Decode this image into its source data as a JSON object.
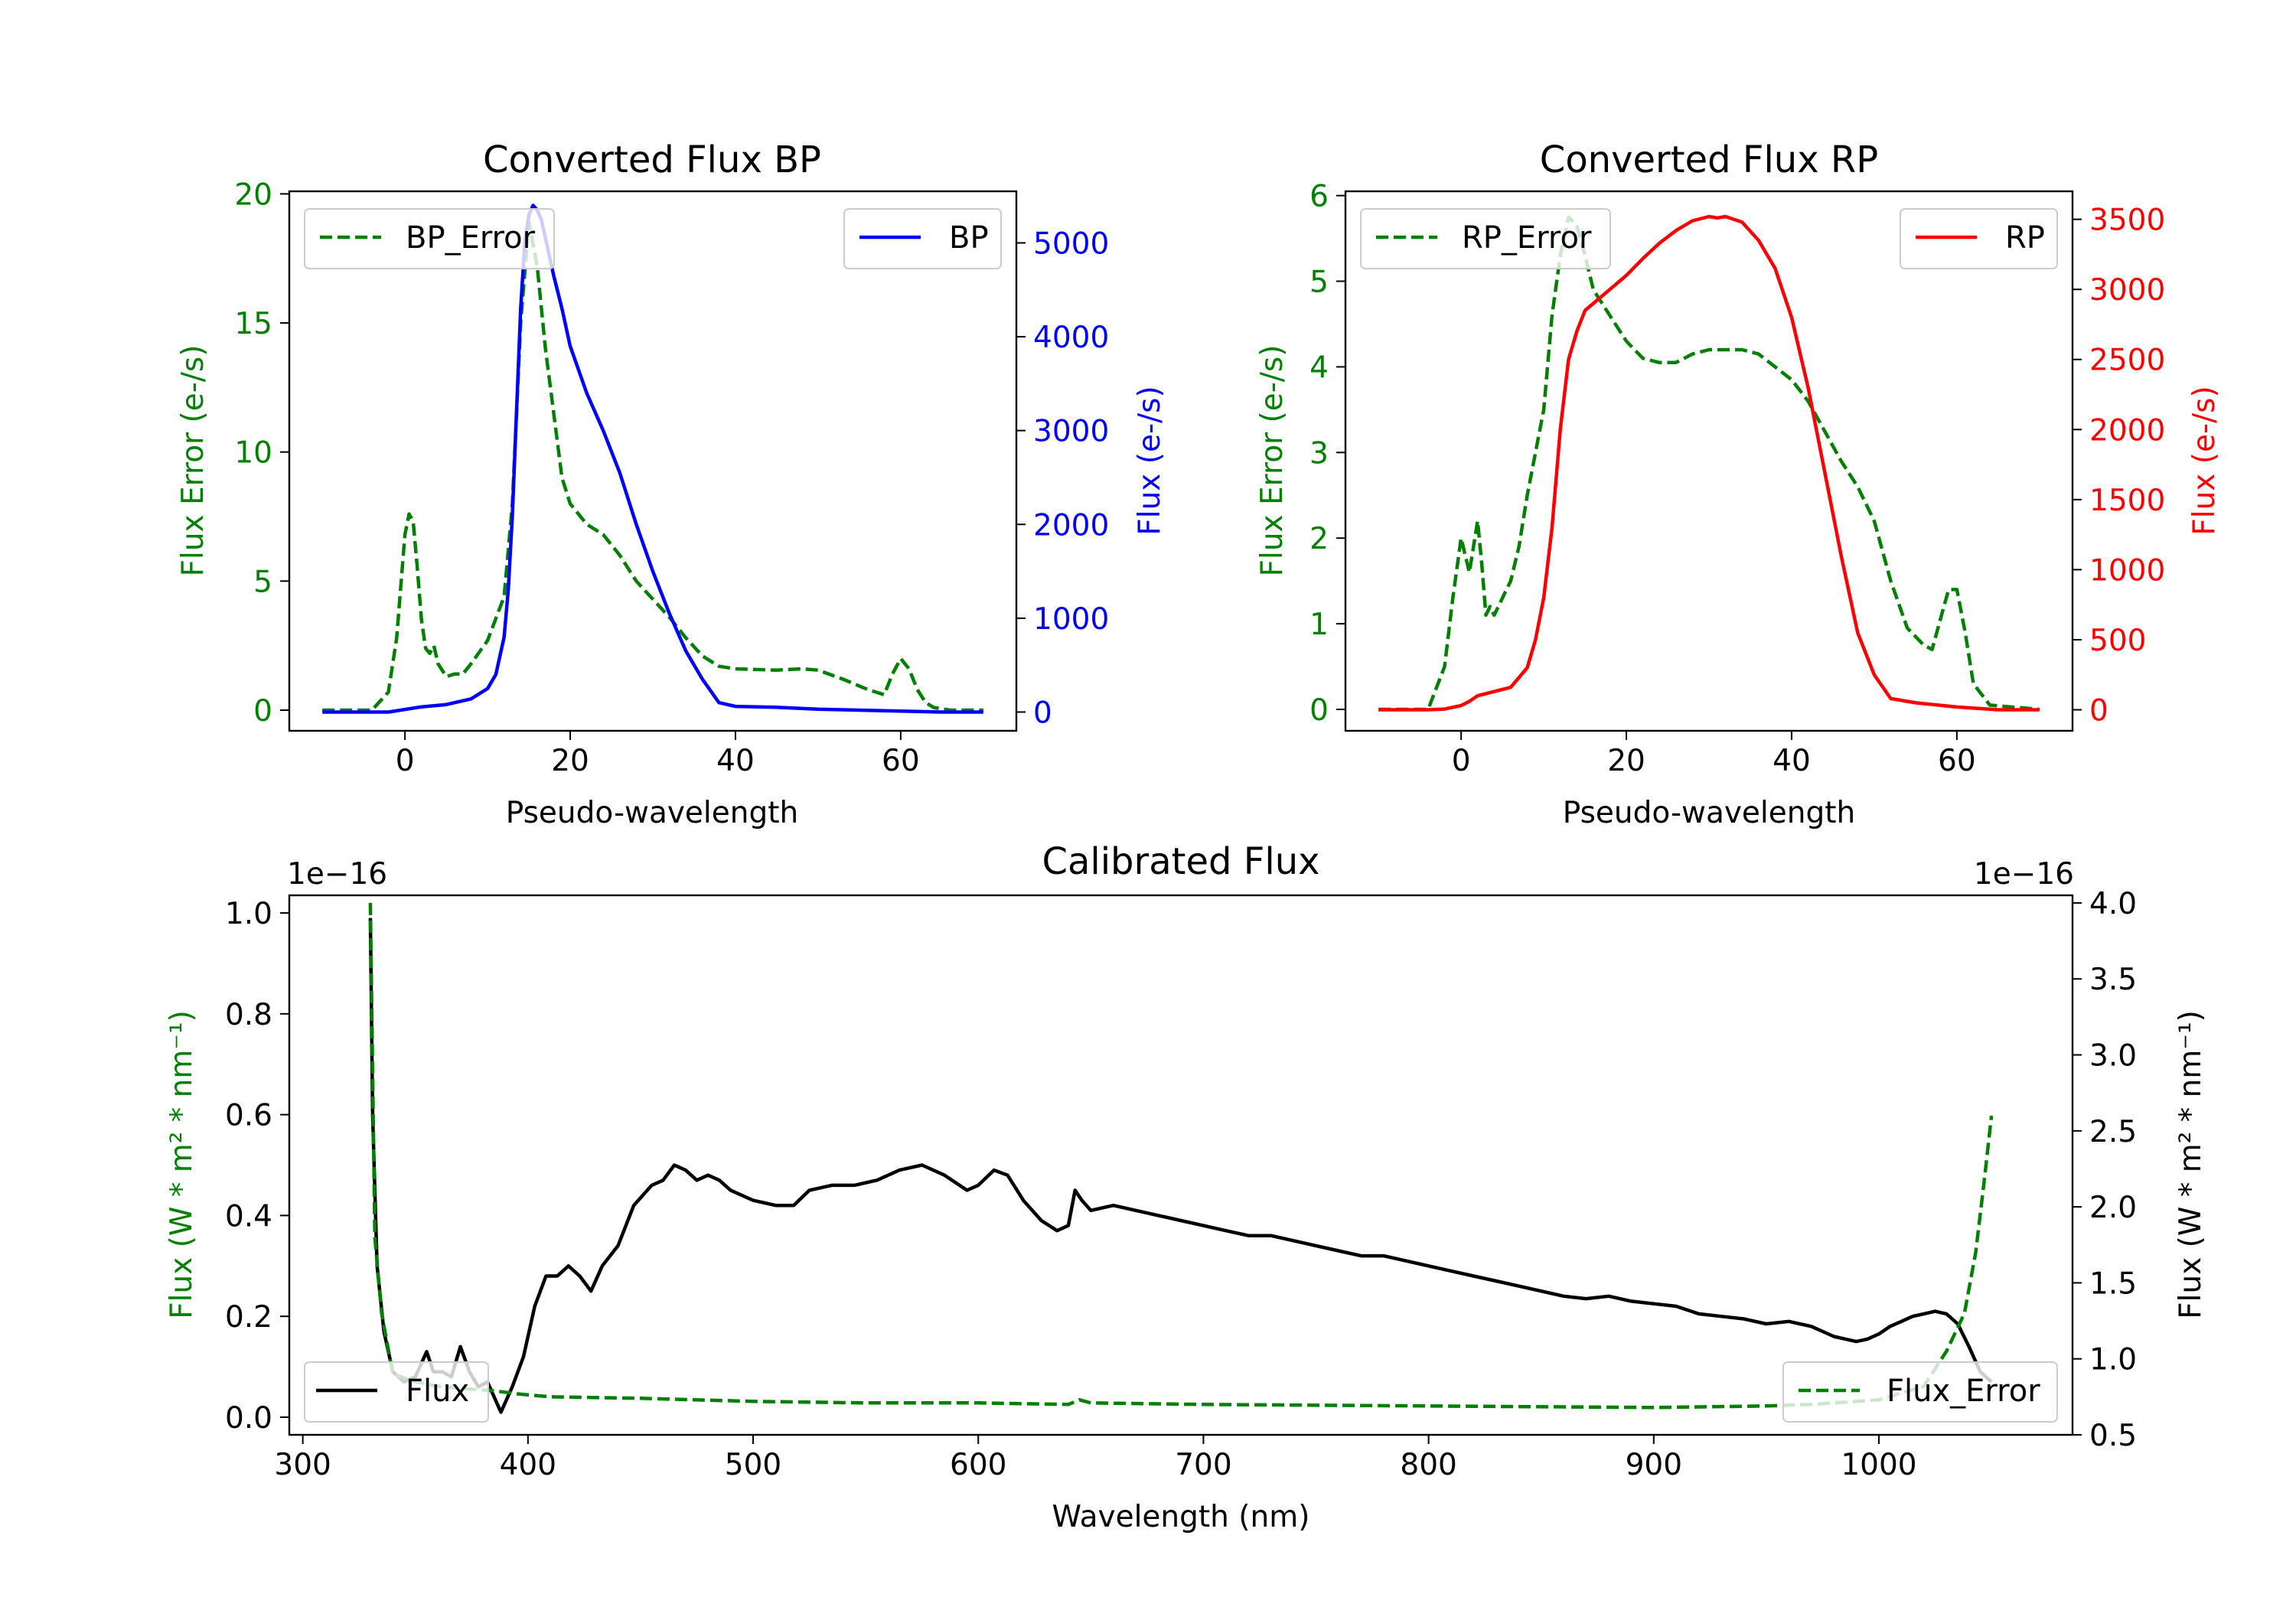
{
  "colors": {
    "green": "#008000",
    "blue": "#0000ff",
    "red": "#ff0000",
    "black": "#000000"
  },
  "chart_data": [
    {
      "id": "bp",
      "type": "line",
      "title": "Converted Flux BP",
      "xlabel": "Pseudo-wavelength",
      "ylabel_left": "Flux Error (e-/s)",
      "ylabel_right": "Flux (e-/s)",
      "xlim": [
        -14,
        74
      ],
      "ylim_left": [
        -0.8,
        20.1
      ],
      "ylim_right": [
        -200,
        5550
      ],
      "xticks": [
        0,
        20,
        40,
        60
      ],
      "yticks_left": [
        0,
        5,
        10,
        15,
        20
      ],
      "yticks_right": [
        0,
        1000,
        2000,
        3000,
        4000,
        5000
      ],
      "legend_left": {
        "position": "upper left",
        "label": "BP_Error"
      },
      "legend_right": {
        "position": "upper right",
        "label": "BP"
      },
      "series": [
        {
          "name": "BP_Error",
          "axis": "left",
          "style": "dashed",
          "color": "#008000",
          "x": [
            -10,
            -4,
            -2,
            -1,
            0,
            0.5,
            1,
            1.5,
            2,
            2.5,
            3,
            3.5,
            4,
            5,
            6,
            7,
            8,
            10,
            12,
            13,
            14,
            15,
            16,
            17,
            18,
            19,
            20,
            22,
            24,
            26,
            28,
            30,
            32,
            34,
            36,
            38,
            40,
            45,
            48,
            50,
            53,
            56,
            58,
            59,
            60,
            61,
            62,
            63,
            64,
            66,
            70
          ],
          "y": [
            0,
            0,
            0.7,
            2.8,
            6.8,
            7.6,
            7.3,
            5.5,
            3.5,
            2.4,
            2.2,
            2.5,
            1.8,
            1.3,
            1.4,
            1.4,
            1.8,
            2.7,
            4.4,
            8,
            15,
            18.9,
            17.2,
            14,
            11.5,
            9,
            8,
            7.2,
            6.8,
            6,
            5,
            4.3,
            3.6,
            2.8,
            2.1,
            1.7,
            1.6,
            1.55,
            1.6,
            1.55,
            1.2,
            0.8,
            0.6,
            1.4,
            2,
            1.6,
            0.8,
            0.3,
            0.1,
            0,
            0
          ]
        },
        {
          "name": "BP",
          "axis": "right",
          "style": "solid",
          "color": "#0000ff",
          "x": [
            -10,
            -2,
            2,
            5,
            8,
            10,
            11,
            12,
            12.5,
            13,
            13.5,
            14,
            14.5,
            15,
            15.5,
            16,
            16.5,
            17,
            18,
            19,
            20,
            22,
            24,
            26,
            28,
            30,
            32,
            34,
            36,
            38,
            40,
            45,
            50,
            55,
            60,
            65,
            70
          ],
          "y": [
            0,
            0,
            55,
            80,
            140,
            250,
            400,
            800,
            1300,
            2100,
            3200,
            4300,
            5000,
            5300,
            5400,
            5350,
            5250,
            5050,
            4650,
            4300,
            3900,
            3400,
            3000,
            2550,
            2000,
            1500,
            1050,
            650,
            350,
            100,
            60,
            50,
            30,
            20,
            10,
            0,
            0
          ]
        }
      ]
    },
    {
      "id": "rp",
      "type": "line",
      "title": "Converted Flux RP",
      "xlabel": "Pseudo-wavelength",
      "ylabel_left": "Flux Error (e-/s)",
      "ylabel_right": "Flux (e-/s)",
      "xlim": [
        -14,
        74
      ],
      "ylim_left": [
        -0.25,
        6.05
      ],
      "ylim_right": [
        -150,
        3700
      ],
      "xticks": [
        0,
        20,
        40,
        60
      ],
      "yticks_left": [
        0,
        1,
        2,
        3,
        4,
        5,
        6
      ],
      "yticks_right": [
        0,
        500,
        1000,
        1500,
        2000,
        2500,
        3000,
        3500
      ],
      "legend_left": {
        "position": "upper left",
        "label": "RP_Error"
      },
      "legend_right": {
        "position": "upper right",
        "label": "RP"
      },
      "series": [
        {
          "name": "RP_Error",
          "axis": "left",
          "style": "dashed",
          "color": "#008000",
          "x": [
            -10,
            -4,
            -2,
            -1,
            0,
            0.5,
            1,
            1.5,
            2,
            2.5,
            3,
            3.5,
            4,
            5,
            6,
            7,
            8,
            10,
            11,
            12,
            13,
            14,
            15,
            16,
            18,
            20,
            22,
            24,
            26,
            28,
            30,
            32,
            34,
            36,
            38,
            40,
            42,
            44,
            46,
            48,
            50,
            52,
            54,
            56,
            57,
            58,
            59,
            60,
            61,
            62,
            64,
            70
          ],
          "y": [
            0,
            0,
            0.5,
            1.3,
            2,
            1.8,
            1.6,
            1.9,
            2.2,
            1.7,
            1.1,
            1.2,
            1.1,
            1.3,
            1.5,
            1.9,
            2.5,
            3.5,
            4.6,
            5.3,
            5.75,
            5.65,
            5.3,
            4.9,
            4.6,
            4.3,
            4.1,
            4.05,
            4.05,
            4.15,
            4.2,
            4.2,
            4.2,
            4.15,
            4.0,
            3.85,
            3.6,
            3.25,
            2.9,
            2.6,
            2.2,
            1.5,
            0.95,
            0.75,
            0.7,
            1.05,
            1.4,
            1.4,
            0.9,
            0.3,
            0.05,
            0
          ]
        },
        {
          "name": "RP",
          "axis": "right",
          "style": "solid",
          "color": "#ff0000",
          "x": [
            -10,
            -4,
            -2,
            0,
            1,
            2,
            4,
            6,
            8,
            9,
            10,
            11,
            12,
            13,
            14,
            15,
            16,
            18,
            20,
            22,
            24,
            26,
            28,
            30,
            31,
            32,
            33,
            34,
            36,
            38,
            40,
            42,
            44,
            46,
            48,
            50,
            52,
            55,
            60,
            65,
            70
          ],
          "y": [
            0,
            0,
            5,
            30,
            60,
            100,
            130,
            160,
            300,
            500,
            800,
            1300,
            2000,
            2500,
            2700,
            2850,
            2900,
            3000,
            3100,
            3220,
            3330,
            3420,
            3490,
            3520,
            3510,
            3520,
            3500,
            3480,
            3350,
            3150,
            2800,
            2300,
            1700,
            1100,
            550,
            250,
            80,
            50,
            20,
            0,
            0
          ]
        }
      ]
    },
    {
      "id": "calibrated",
      "type": "line",
      "title": "Calibrated Flux",
      "xlabel": "Wavelength (nm)",
      "ylabel_left": "Flux (W * m² * nm⁻¹)",
      "ylabel_right": "Flux (W * m² * nm⁻¹)",
      "offset_left": "1e−16",
      "offset_right": "1e−16",
      "xlim": [
        294,
        1086
      ],
      "ylim_left": [
        -0.035,
        1.035
      ],
      "ylim_right": [
        0.5,
        4.05
      ],
      "xticks": [
        300,
        400,
        500,
        600,
        700,
        800,
        900,
        1000
      ],
      "yticks_left": [
        0.0,
        0.2,
        0.4,
        0.6,
        0.8,
        1.0
      ],
      "yticks_right": [
        0.5,
        1.0,
        1.5,
        2.0,
        2.5,
        3.0,
        3.5,
        4.0
      ],
      "legend_left": {
        "position": "lower left",
        "label": "Flux"
      },
      "legend_right": {
        "position": "lower right",
        "label": "Flux_Error"
      },
      "series": [
        {
          "name": "Flux",
          "axis": "left",
          "style": "solid",
          "color": "#000000",
          "x": [
            330,
            331,
            333,
            336,
            340,
            345,
            350,
            355,
            358,
            362,
            366,
            370,
            374,
            378,
            382,
            385,
            388,
            393,
            398,
            403,
            408,
            413,
            418,
            423,
            428,
            433,
            440,
            447,
            455,
            460,
            465,
            470,
            475,
            480,
            485,
            490,
            500,
            510,
            518,
            525,
            535,
            545,
            555,
            565,
            575,
            585,
            595,
            600,
            607,
            613,
            620,
            628,
            635,
            640,
            643,
            646,
            650,
            660,
            670,
            680,
            690,
            700,
            710,
            720,
            730,
            740,
            750,
            760,
            770,
            780,
            790,
            800,
            810,
            820,
            830,
            840,
            850,
            860,
            870,
            880,
            890,
            900,
            910,
            920,
            930,
            940,
            950,
            960,
            970,
            980,
            990,
            995,
            1000,
            1005,
            1010,
            1015,
            1020,
            1025,
            1030,
            1035,
            1040,
            1045,
            1050
          ],
          "y": [
            0.99,
            0.6,
            0.3,
            0.17,
            0.09,
            0.07,
            0.08,
            0.13,
            0.09,
            0.09,
            0.08,
            0.14,
            0.09,
            0.06,
            0.07,
            0.04,
            0.01,
            0.06,
            0.12,
            0.22,
            0.28,
            0.28,
            0.3,
            0.28,
            0.25,
            0.3,
            0.34,
            0.42,
            0.46,
            0.47,
            0.5,
            0.49,
            0.47,
            0.48,
            0.47,
            0.45,
            0.43,
            0.42,
            0.42,
            0.45,
            0.46,
            0.46,
            0.47,
            0.49,
            0.5,
            0.48,
            0.45,
            0.46,
            0.49,
            0.48,
            0.43,
            0.39,
            0.37,
            0.38,
            0.45,
            0.43,
            0.41,
            0.42,
            0.41,
            0.4,
            0.39,
            0.38,
            0.37,
            0.36,
            0.36,
            0.35,
            0.34,
            0.33,
            0.32,
            0.32,
            0.31,
            0.3,
            0.29,
            0.28,
            0.27,
            0.26,
            0.25,
            0.24,
            0.235,
            0.24,
            0.23,
            0.225,
            0.22,
            0.205,
            0.2,
            0.195,
            0.185,
            0.19,
            0.18,
            0.16,
            0.15,
            0.155,
            0.165,
            0.18,
            0.19,
            0.2,
            0.205,
            0.21,
            0.205,
            0.185,
            0.14,
            0.09,
            0.07
          ]
        },
        {
          "name": "Flux_Error",
          "axis": "right",
          "style": "dashed",
          "color": "#008000",
          "x": [
            330,
            332,
            335,
            340,
            350,
            360,
            375,
            385,
            395,
            410,
            450,
            500,
            550,
            600,
            640,
            645,
            650,
            700,
            800,
            900,
            950,
            970,
            1000,
            1020,
            1030,
            1038,
            1043,
            1047,
            1050
          ],
          "y": [
            4.0,
            1.8,
            1.3,
            0.9,
            0.85,
            0.82,
            0.8,
            0.79,
            0.77,
            0.75,
            0.74,
            0.72,
            0.71,
            0.71,
            0.7,
            0.73,
            0.71,
            0.7,
            0.69,
            0.68,
            0.69,
            0.7,
            0.73,
            0.82,
            1.05,
            1.3,
            1.7,
            2.2,
            2.6
          ]
        }
      ]
    }
  ]
}
